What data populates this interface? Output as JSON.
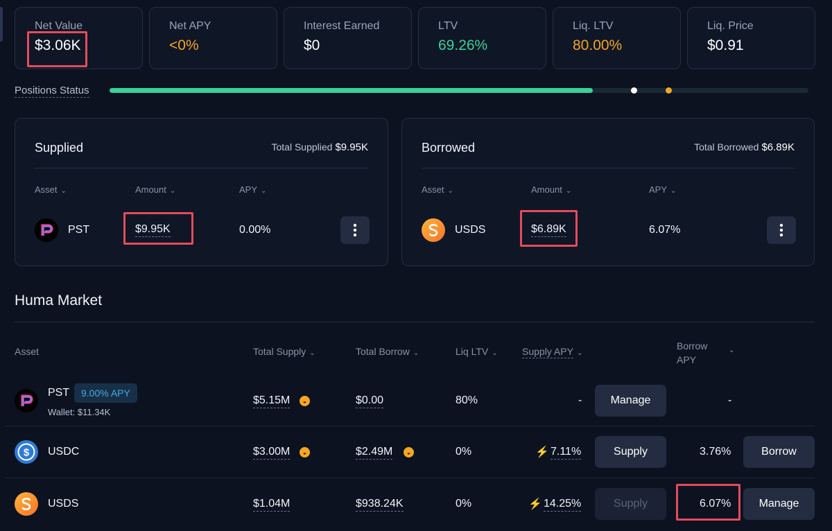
{
  "stats": [
    {
      "label": "Net Value",
      "value": "$3.06K"
    },
    {
      "label": "Net APY",
      "value": "<0%"
    },
    {
      "label": "Interest Earned",
      "value": "$0"
    },
    {
      "label": "LTV",
      "value": "69.26%"
    },
    {
      "label": "Liq. LTV",
      "value": "80.00%"
    },
    {
      "label": "Liq. Price",
      "value": "$0.91"
    }
  ],
  "positions": {
    "label": "Positions Status",
    "ltv_fraction": 0.6926,
    "liq_ltv_fraction": 0.8
  },
  "supplied": {
    "title": "Supplied",
    "total_label": "Total Supplied",
    "total_value": "$9.95K",
    "headers": [
      "Asset",
      "Amount",
      "APY"
    ],
    "row": {
      "asset": "PST",
      "amount": "$9.95K",
      "apy": "0.00%"
    }
  },
  "borrowed": {
    "title": "Borrowed",
    "total_label": "Total Borrowed",
    "total_value": "$6.89K",
    "headers": [
      "Asset",
      "Amount",
      "APY"
    ],
    "row": {
      "asset": "USDS",
      "amount": "$6.89K",
      "apy": "6.07%"
    }
  },
  "market": {
    "title": "Huma Market",
    "headers": {
      "asset": "Asset",
      "total_supply": "Total Supply",
      "total_borrow": "Total Borrow",
      "liq_ltv": "Liq LTV",
      "supply_apy": "Supply APY",
      "borrow_apy_line1": "Borrow",
      "borrow_apy_line2": "APY"
    },
    "rows": [
      {
        "asset": "PST",
        "badge": "9.00% APY",
        "wallet": "Wallet: $11.34K",
        "total_supply": "$5.15M",
        "total_borrow": "$0.00",
        "liq_ltv": "80%",
        "supply_apy": "-",
        "supply_button": "Manage",
        "borrow_apy": "-"
      },
      {
        "asset": "USDC",
        "total_supply": "$3.00M",
        "total_borrow": "$2.49M",
        "liq_ltv": "0%",
        "supply_apy": "7.11%",
        "supply_button": "Supply",
        "borrow_apy": "3.76%",
        "borrow_button": "Borrow"
      },
      {
        "asset": "USDS",
        "total_supply": "$1.04M",
        "total_borrow": "$938.24K",
        "liq_ltv": "0%",
        "supply_apy": "14.25%",
        "supply_button": "Supply",
        "borrow_apy": "6.07%",
        "borrow_button": "Manage"
      }
    ]
  },
  "colors": {
    "green": "#3ad29a",
    "orange": "#f5a623",
    "highlight_box": "#e64b5a",
    "background": "#0c1220"
  }
}
